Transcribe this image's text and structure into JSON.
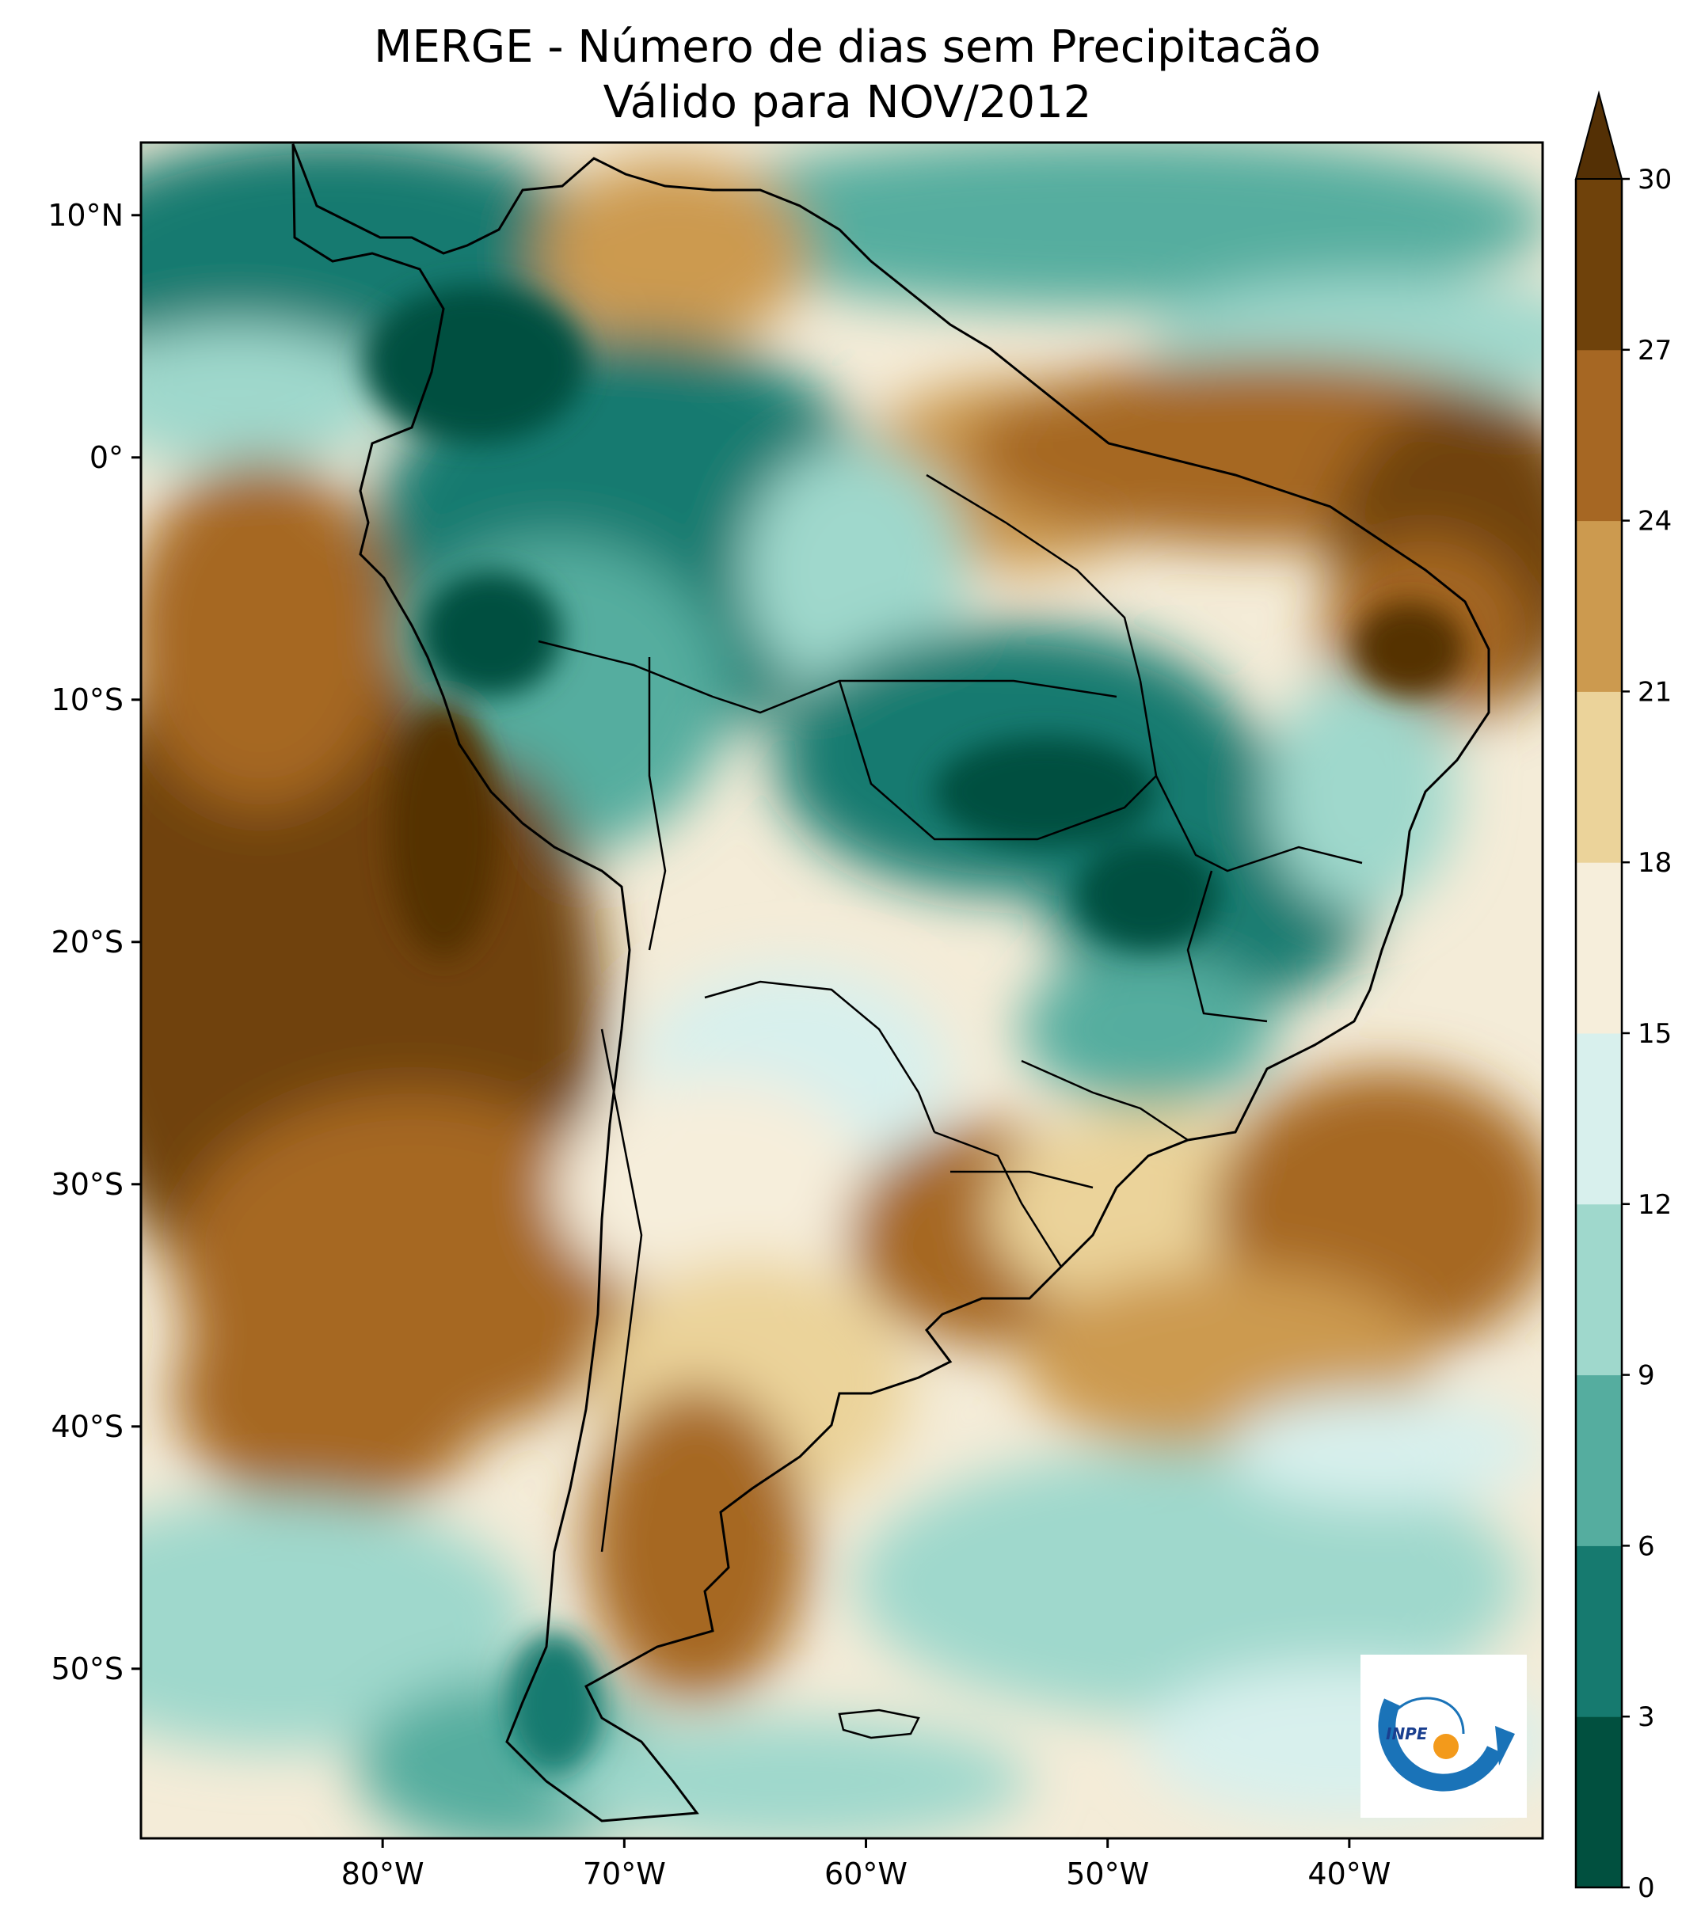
{
  "title": {
    "line1": "MERGE - Número de dias sem Precipitacão",
    "line2": "Válido para NOV/2012"
  },
  "axes": {
    "lat_ticks": [
      "10°N",
      "0°",
      "10°S",
      "20°S",
      "30°S",
      "40°S",
      "50°S"
    ],
    "lon_ticks": [
      "80°W",
      "70°W",
      "60°W",
      "50°W",
      "40°W"
    ]
  },
  "map_extent": {
    "lon_min": -90,
    "lon_max": -32,
    "lat_min": -57,
    "lat_max": 13
  },
  "colorbar": {
    "ticks": [
      "0",
      "3",
      "6",
      "9",
      "12",
      "15",
      "18",
      "21",
      "24",
      "27",
      "30"
    ],
    "extend": "max",
    "colors": [
      "#01503f",
      "#167a6f",
      "#55ad9f",
      "#9fd8cc",
      "#d8f0ed",
      "#f6eedb",
      "#ebd39a",
      "#cc9a4f",
      "#a66723",
      "#6f420b"
    ],
    "extend_color": "#543005"
  },
  "ocean_fill": "#f4ecd8",
  "logo": {
    "text": "INPE",
    "blue": "#1a73b8",
    "orange": "#f39a1b"
  }
}
